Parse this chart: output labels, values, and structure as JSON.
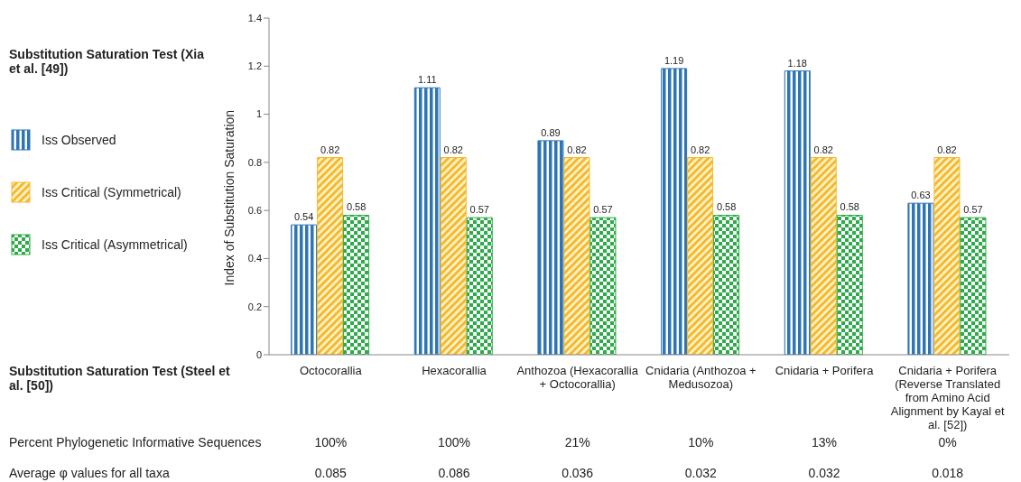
{
  "chart_data": {
    "type": "bar",
    "title": "Substitution Saturation Test (Xia et al. [49])",
    "ylabel": "Index of Substitution Saturation",
    "categories": [
      "Octocorallia",
      "Hexacorallia",
      "Anthozoa (Hexacorallia + Octocorallia)",
      "Cnidaria (Anthozoa + Medusozoa)",
      "Cnidaria + Porifera",
      "Cnidaria + Porifera (Reverse Translated from Amino Acid Alignment by Kayal et al. [52])"
    ],
    "series": [
      {
        "name": "Iss Observed",
        "color": "#2e75b6",
        "values": [
          0.54,
          1.11,
          0.89,
          1.19,
          1.18,
          0.63
        ]
      },
      {
        "name": "Iss Critical (Symmetrical)",
        "color": "#f5b82e",
        "values": [
          0.82,
          0.82,
          0.82,
          0.82,
          0.82,
          0.82
        ]
      },
      {
        "name": "Iss Critical (Asymmetrical)",
        "color": "#2eaa4a",
        "values": [
          0.58,
          0.57,
          0.57,
          0.58,
          0.58,
          0.57
        ]
      }
    ],
    "ylim": [
      0,
      1.4
    ],
    "yticks": [
      0,
      0.2,
      0.4,
      0.6,
      0.8,
      1,
      1.2,
      1.4
    ],
    "grid": false,
    "legend": "left",
    "data_labels": true,
    "annotations": [
      "Substitution Saturation Test (Steel et al. [50])",
      "Percent Phylogenetic Informative Sequences",
      "100%",
      "100%",
      "21%",
      "10%",
      "13%",
      "0%",
      "Average φ values for all taxa",
      "0.085",
      "0.086",
      "0.036",
      "0.032",
      "0.032",
      "0.018"
    ]
  }
}
